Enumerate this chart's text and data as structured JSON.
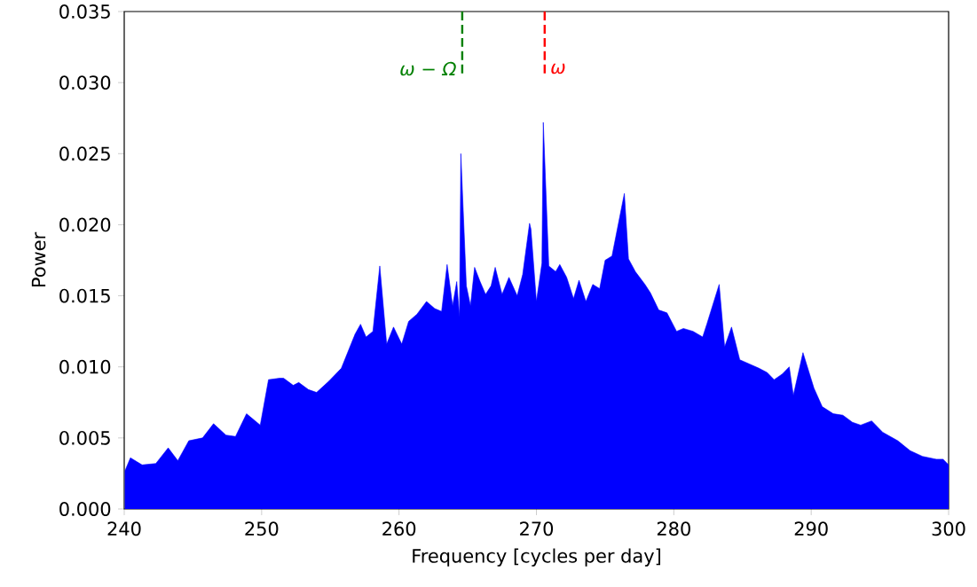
{
  "chart_data": {
    "type": "area",
    "xlabel": "Frequency [cycles per day]",
    "ylabel": "Power",
    "xlim": [
      240,
      300
    ],
    "ylim": [
      0,
      0.035
    ],
    "xticks": [
      240,
      250,
      260,
      270,
      280,
      290,
      300
    ],
    "yticks": [
      {
        "value": 0,
        "label": "0.000"
      },
      {
        "value": 0.005,
        "label": "0.005"
      },
      {
        "value": 0.01,
        "label": "0.010"
      },
      {
        "value": 0.015,
        "label": "0.015"
      },
      {
        "value": 0.02,
        "label": "0.020"
      },
      {
        "value": 0.025,
        "label": "0.025"
      },
      {
        "value": 0.03,
        "label": "0.030"
      },
      {
        "value": 0.035,
        "label": "0.035"
      }
    ],
    "grid": false,
    "series": [
      {
        "color": "#0000ff",
        "x": [
          240.06,
          240.45,
          241.3,
          242.3,
          243.2,
          243.9,
          244.7,
          245.7,
          246.5,
          247.4,
          248.1,
          248.9,
          249.9,
          250.5,
          251.3,
          251.6,
          252.3,
          252.7,
          253.4,
          254.0,
          254.9,
          255.8,
          256.8,
          257.2,
          257.6,
          258.1,
          258.6,
          259.1,
          259.6,
          260.2,
          260.7,
          261.3,
          262.0,
          262.6,
          263.1,
          263.5,
          263.9,
          264.2,
          264.4,
          264.5,
          264.9,
          265.2,
          265.5,
          265.9,
          266.3,
          266.7,
          267.0,
          267.5,
          268.0,
          268.6,
          269.0,
          269.5,
          269.6,
          270.0,
          270.4,
          270.5,
          270.9,
          271.4,
          271.7,
          272.2,
          272.7,
          273.1,
          273.6,
          274.1,
          274.6,
          275.0,
          275.5,
          276.4,
          276.7,
          277.2,
          277.9,
          278.3,
          278.9,
          279.5,
          280.2,
          280.7,
          281.4,
          282.1,
          282.4,
          283.3,
          283.7,
          284.2,
          284.8,
          285.5,
          286.2,
          286.8,
          287.3,
          287.9,
          288.4,
          288.7,
          289.4,
          290.2,
          290.8,
          291.6,
          292.3,
          293.0,
          293.6,
          294.4,
          295.2,
          296.3,
          297.2,
          298.1,
          299.1,
          299.6,
          300.0
        ],
        "values": [
          0.0027,
          0.0036,
          0.0031,
          0.0032,
          0.0043,
          0.0034,
          0.0048,
          0.005,
          0.006,
          0.0052,
          0.0051,
          0.0067,
          0.0059,
          0.0091,
          0.0092,
          0.0092,
          0.0087,
          0.0089,
          0.0084,
          0.0082,
          0.009,
          0.0099,
          0.0123,
          0.013,
          0.0121,
          0.0125,
          0.0171,
          0.0116,
          0.0128,
          0.0116,
          0.0132,
          0.0137,
          0.0146,
          0.0141,
          0.0139,
          0.0172,
          0.0143,
          0.016,
          0.0135,
          0.025,
          0.0157,
          0.0143,
          0.017,
          0.016,
          0.0151,
          0.0157,
          0.017,
          0.0151,
          0.0163,
          0.015,
          0.0165,
          0.0201,
          0.0197,
          0.0146,
          0.0173,
          0.0272,
          0.0171,
          0.0167,
          0.0172,
          0.0163,
          0.0148,
          0.0161,
          0.0146,
          0.0158,
          0.0155,
          0.0175,
          0.0178,
          0.0222,
          0.0176,
          0.0167,
          0.0158,
          0.0152,
          0.014,
          0.0138,
          0.0125,
          0.0127,
          0.0125,
          0.0121,
          0.013,
          0.0158,
          0.0114,
          0.0128,
          0.0105,
          0.0102,
          0.0099,
          0.0096,
          0.0091,
          0.0095,
          0.01,
          0.008,
          0.011,
          0.0085,
          0.0072,
          0.0067,
          0.0066,
          0.0061,
          0.0059,
          0.0062,
          0.0054,
          0.0048,
          0.0041,
          0.0037,
          0.0035,
          0.0035,
          0.0031
        ]
      }
    ],
    "ref_lines": [
      {
        "axis": "x",
        "value": 264.6,
        "label": "ω − Ω",
        "color": "#008000",
        "line_style": "dashed"
      },
      {
        "axis": "x",
        "value": 270.6,
        "label": "ω",
        "color": "#ff0000",
        "line_style": "dashed"
      }
    ]
  }
}
